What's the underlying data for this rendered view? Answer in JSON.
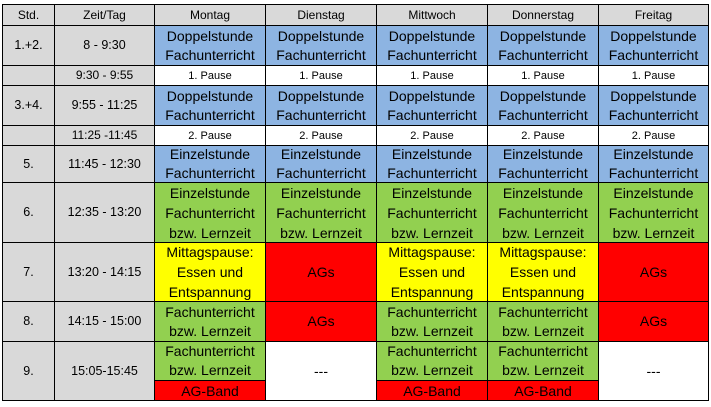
{
  "colors": {
    "blue": "#8db4e2",
    "green": "#92d050",
    "yellow": "#ffff00",
    "red": "#ff0000",
    "gray": "#d9d9d9",
    "white": "#ffffff"
  },
  "header": {
    "std": "Std.",
    "zeit": "Zeit/Tag",
    "days": [
      "Montag",
      "Dienstag",
      "Mittwoch",
      "Donnerstag",
      "Freitag"
    ]
  },
  "rows": [
    {
      "std": "1.+2.",
      "time": "8 - 9:30",
      "cells": [
        {
          "lines": [
            "Doppelstunde",
            "Fachunterricht"
          ],
          "color": "blue"
        },
        {
          "lines": [
            "Doppelstunde",
            "Fachunterricht"
          ],
          "color": "blue"
        },
        {
          "lines": [
            "Doppelstunde",
            "Fachunterricht"
          ],
          "color": "blue"
        },
        {
          "lines": [
            "Doppelstunde",
            "Fachunterricht"
          ],
          "color": "blue"
        },
        {
          "lines": [
            "Doppelstunde",
            "Fachunterricht"
          ],
          "color": "blue"
        }
      ]
    },
    {
      "std": "",
      "time": "9:30 - 9:55",
      "cells": [
        {
          "lines": [
            "1. Pause"
          ],
          "color": "white"
        },
        {
          "lines": [
            "1. Pause"
          ],
          "color": "white"
        },
        {
          "lines": [
            "1. Pause"
          ],
          "color": "white"
        },
        {
          "lines": [
            "1. Pause"
          ],
          "color": "white"
        },
        {
          "lines": [
            "1. Pause"
          ],
          "color": "white"
        }
      ]
    },
    {
      "std": "3.+4.",
      "time": "9:55 - 11:25",
      "cells": [
        {
          "lines": [
            "Doppelstunde",
            "Fachunterricht"
          ],
          "color": "blue"
        },
        {
          "lines": [
            "Doppelstunde",
            "Fachunterricht"
          ],
          "color": "blue"
        },
        {
          "lines": [
            "Doppelstunde",
            "Fachunterricht"
          ],
          "color": "blue"
        },
        {
          "lines": [
            "Doppelstunde",
            "Fachunterricht"
          ],
          "color": "blue"
        },
        {
          "lines": [
            "Doppelstunde",
            "Fachunterricht"
          ],
          "color": "blue"
        }
      ]
    },
    {
      "std": "",
      "time": "11:25 -11:45",
      "cells": [
        {
          "lines": [
            "2. Pause"
          ],
          "color": "white"
        },
        {
          "lines": [
            "2. Pause"
          ],
          "color": "white"
        },
        {
          "lines": [
            "2. Pause"
          ],
          "color": "white"
        },
        {
          "lines": [
            "2. Pause"
          ],
          "color": "white"
        },
        {
          "lines": [
            "2. Pause"
          ],
          "color": "white"
        }
      ]
    },
    {
      "std": "5.",
      "time": "11:45 - 12:30",
      "cells": [
        {
          "lines": [
            "Einzelstunde",
            "Fachunterricht"
          ],
          "color": "blue"
        },
        {
          "lines": [
            "Einzelstunde",
            "Fachunterricht"
          ],
          "color": "blue"
        },
        {
          "lines": [
            "Einzelstunde",
            "Fachunterricht"
          ],
          "color": "blue"
        },
        {
          "lines": [
            "Einzelstunde",
            "Fachunterricht"
          ],
          "color": "blue"
        },
        {
          "lines": [
            "Einzelstunde",
            "Fachunterricht"
          ],
          "color": "blue"
        }
      ]
    },
    {
      "std": "6.",
      "time": "12:35 - 13:20",
      "cells": [
        {
          "lines": [
            "Einzelstunde",
            "Fachunterricht",
            "bzw. Lernzeit"
          ],
          "color": "green"
        },
        {
          "lines": [
            "Einzelstunde",
            "Fachunterricht",
            "bzw. Lernzeit"
          ],
          "color": "green"
        },
        {
          "lines": [
            "Einzelstunde",
            "Fachunterricht",
            "bzw. Lernzeit"
          ],
          "color": "green"
        },
        {
          "lines": [
            "Einzelstunde",
            "Fachunterricht",
            "bzw. Lernzeit"
          ],
          "color": "green"
        },
        {
          "lines": [
            "Einzelstunde",
            "Fachunterricht",
            "bzw. Lernzeit"
          ],
          "color": "green"
        }
      ]
    },
    {
      "std": "7.",
      "time": "13:20 - 14:15",
      "cells": [
        {
          "lines": [
            "Mittagspause:",
            "Essen und",
            "Entspannung"
          ],
          "color": "yellow"
        },
        {
          "lines": [
            "AGs"
          ],
          "color": "red"
        },
        {
          "lines": [
            "Mittagspause:",
            "Essen und",
            "Entspannung"
          ],
          "color": "yellow"
        },
        {
          "lines": [
            "Mittagspause:",
            "Essen und",
            "Entspannung"
          ],
          "color": "yellow"
        },
        {
          "lines": [
            "AGs"
          ],
          "color": "red"
        }
      ]
    },
    {
      "std": "8.",
      "time": "14:15 - 15:00",
      "cells": [
        {
          "lines": [
            "Fachunterricht",
            "bzw. Lernzeit"
          ],
          "color": "green"
        },
        {
          "lines": [
            "AGs"
          ],
          "color": "red"
        },
        {
          "lines": [
            "Fachunterricht",
            "bzw. Lernzeit"
          ],
          "color": "green"
        },
        {
          "lines": [
            "Fachunterricht",
            "bzw. Lernzeit"
          ],
          "color": "green"
        },
        {
          "lines": [
            "AGs"
          ],
          "color": "red"
        }
      ]
    },
    {
      "std": "9.",
      "time": "15:05-15:45",
      "cells": [
        {
          "lines": [
            "Fachunterricht",
            "bzw. Lernzeit"
          ],
          "color": "green",
          "sub": {
            "text": "AG-Band",
            "color": "red"
          }
        },
        {
          "lines": [
            "---"
          ],
          "color": "white"
        },
        {
          "lines": [
            "Fachunterricht",
            "bzw. Lernzeit"
          ],
          "color": "green",
          "sub": {
            "text": "AG-Band",
            "color": "red"
          }
        },
        {
          "lines": [
            "Fachunterricht",
            "bzw. Lernzeit"
          ],
          "color": "green",
          "sub": {
            "text": "AG-Band",
            "color": "red"
          }
        },
        {
          "lines": [
            "---"
          ],
          "color": "white"
        }
      ]
    }
  ]
}
